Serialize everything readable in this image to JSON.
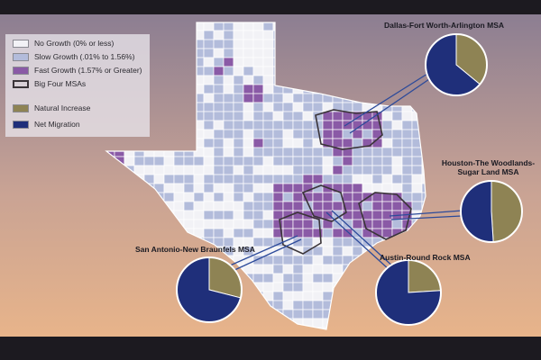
{
  "legend": {
    "items": [
      {
        "key": "no-growth",
        "label": "No Growth (0% or less)",
        "color": "#f2f2f6"
      },
      {
        "key": "slow-growth",
        "label": "Slow Growth (.01% to 1.56%)",
        "color": "#b3bcdb"
      },
      {
        "key": "fast-growth",
        "label": "Fast Growth (1.57% or Greater)",
        "color": "#8a5aa6"
      },
      {
        "key": "big-four",
        "label": "Big Four MSAs",
        "color": "#3a3438"
      },
      {
        "key": "natural-increase",
        "label": "Natural Increase",
        "color": "#8e8354"
      },
      {
        "key": "net-migration",
        "label": "Net Migration",
        "color": "#1f2f7a"
      }
    ]
  },
  "msas": [
    {
      "key": "dallas",
      "label": "Dallas-Fort Worth-Arlington  MSA",
      "natural_increase_pct": 0.36,
      "net_migration_pct": 0.64
    },
    {
      "key": "houston",
      "label": "Houston-The Woodlands-Sugar Land MSA",
      "natural_increase_pct": 0.49,
      "net_migration_pct": 0.51
    },
    {
      "key": "sanantonio",
      "label": "San Antonio-New Braunfels MSA",
      "natural_increase_pct": 0.29,
      "net_migration_pct": 0.71
    },
    {
      "key": "austin",
      "label": "Austin-Round Rock MSA",
      "natural_increase_pct": 0.24,
      "net_migration_pct": 0.76
    }
  ],
  "colors": {
    "background_top": "#8c7e92",
    "background_bottom": "#e8b48a",
    "county_border": "#ffffff",
    "leader_line": "#2c4a9a"
  }
}
